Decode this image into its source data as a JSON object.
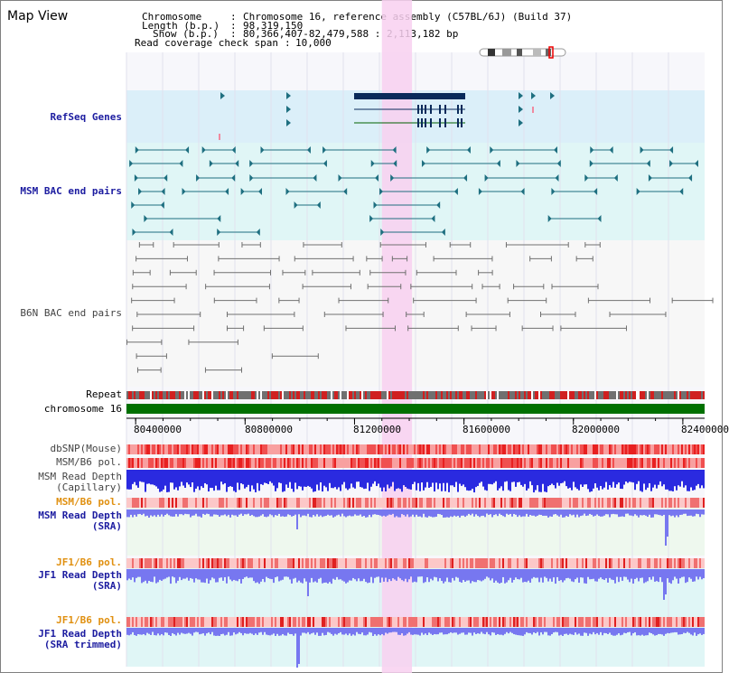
{
  "header": {
    "title": "Map View",
    "chromosome_label": "Chromosome",
    "chromosome_value": "Chromosome 16, reference assembly (C57BL/6J) (Build 37)",
    "length_label": "Length (b.p.)",
    "length_value": "98,319,150",
    "show_label": "Show (b.p.)",
    "show_value": "80,366,407-82,479,588 : 2,113,182 bp",
    "coverage_label": "Read coverage check span",
    "coverage_value": "10,000"
  },
  "tracks": {
    "refseq": "RefSeq Genes",
    "msm_bac": "MSM BAC end pairs",
    "b6n_bac": "B6N BAC end pairs",
    "repeat": "Repeat",
    "chromosome": "chromosome 16",
    "dbsnp": "dbSNP(Mouse)",
    "msm_b6_pol": "MSM/B6 pol.",
    "msm_depth_cap_1": "MSM Read Depth",
    "msm_depth_cap_2": "(Capillary)",
    "msm_b6_pol_2": "MSM/B6 pol.",
    "msm_depth_sra_1": "MSM Read Depth",
    "msm_depth_sra_2": "(SRA)",
    "jf1_b6_pol": "JF1/B6 pol.",
    "jf1_depth_sra_1": "JF1 Read Depth",
    "jf1_depth_sra_2": "(SRA)",
    "jf1_b6_pol_2": "JF1/B6 pol.",
    "jf1_depth_trim_1": "JF1 Read Depth",
    "jf1_depth_trim_2": "(SRA trimmed)"
  },
  "axis": {
    "ticks": [
      "80400000",
      "80800000",
      "81200000",
      "81600000",
      "82000000",
      "82400000"
    ],
    "tick_values": [
      80400000,
      80800000,
      81200000,
      81600000,
      82000000,
      82400000
    ],
    "range": [
      80366407,
      82479588
    ],
    "highlight_range": [
      81300000,
      81410000
    ]
  },
  "colors": {
    "refseq_bg": "#dbeff9",
    "bac_bg": "#e0f6f6",
    "msm_bac": "#1e6f80",
    "b6n_bac": "#707070",
    "highlight": "#f8d0f0",
    "chrom_bar": "#007000",
    "gene_dark": "#0a2a5a",
    "depth_blue": "#2a2ae0",
    "depth_light": "#7777f0"
  }
}
